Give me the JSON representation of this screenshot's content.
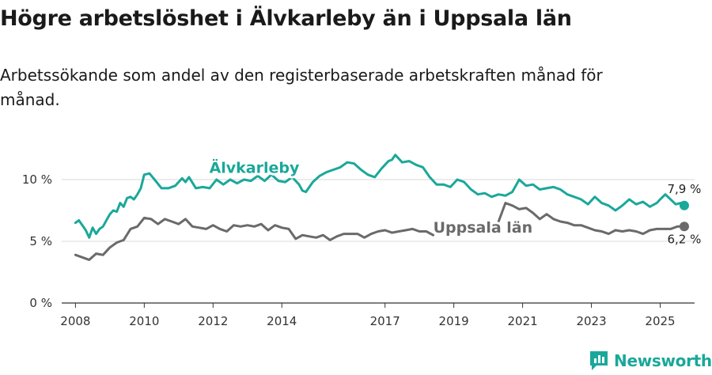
{
  "title": "Högre arbetslöshet i Älvkarleby än i Uppsala län",
  "subtitle": "Arbetssökande som andel av den registerbaserade arbetskraften månad för månad.",
  "brand": {
    "name": "Newsworthy",
    "color": "#1aa89a"
  },
  "chart_data": {
    "type": "line",
    "title": "Högre arbetslöshet i Älvkarleby än i Uppsala län",
    "xlabel": "",
    "ylabel": "",
    "xlim": [
      2007.6,
      2026.0
    ],
    "ylim": [
      0,
      12.5
    ],
    "grid": true,
    "y_ticks": [
      {
        "value": 0,
        "label": "0 %"
      },
      {
        "value": 5,
        "label": "5 %"
      },
      {
        "value": 10,
        "label": "10 %"
      }
    ],
    "x_ticks": [
      {
        "value": 2008,
        "label": "2008"
      },
      {
        "value": 2010,
        "label": "2010"
      },
      {
        "value": 2012,
        "label": "2012"
      },
      {
        "value": 2014,
        "label": "2014"
      },
      {
        "value": 2017,
        "label": "2017"
      },
      {
        "value": 2019,
        "label": "2019"
      },
      {
        "value": 2021,
        "label": "2021"
      },
      {
        "value": 2023,
        "label": "2023"
      },
      {
        "value": 2025,
        "label": "2025"
      }
    ],
    "series": [
      {
        "name": "Älvkarleby",
        "color": "#1aa89a",
        "end_label": "7,9 %",
        "x": [
          2008.0,
          2008.1,
          2008.2,
          2008.3,
          2008.4,
          2008.5,
          2008.6,
          2008.7,
          2008.8,
          2008.9,
          2009.0,
          2009.1,
          2009.2,
          2009.3,
          2009.4,
          2009.5,
          2009.6,
          2009.7,
          2009.8,
          2009.9,
          2010.0,
          2010.15,
          2010.3,
          2010.5,
          2010.7,
          2010.9,
          2011.0,
          2011.1,
          2011.2,
          2011.3,
          2011.5,
          2011.7,
          2011.9,
          2012.1,
          2012.3,
          2012.5,
          2012.7,
          2012.9,
          2013.1,
          2013.3,
          2013.5,
          2013.7,
          2013.9,
          2014.1,
          2014.3,
          2014.5,
          2014.6,
          2014.7,
          2014.8,
          2014.9,
          2015.1,
          2015.3,
          2015.5,
          2015.7,
          2015.9,
          2016.1,
          2016.3,
          2016.5,
          2016.7,
          2016.9,
          2017.0,
          2017.1,
          2017.2,
          2017.3,
          2017.5,
          2017.7,
          2017.9,
          2018.1,
          2018.3,
          2018.5,
          2018.7,
          2018.9,
          2019.1,
          2019.3,
          2019.5,
          2019.7,
          2019.9,
          2020.1,
          2020.3,
          2020.5,
          2020.7,
          2020.9,
          2021.1,
          2021.3,
          2021.5,
          2021.7,
          2021.9,
          2022.1,
          2022.3,
          2022.5,
          2022.7,
          2022.9,
          2023.1,
          2023.3,
          2023.5,
          2023.7,
          2023.9,
          2024.1,
          2024.3,
          2024.5,
          2024.7,
          2024.9,
          2025.0,
          2025.15,
          2025.3,
          2025.45,
          2025.6,
          2025.7
        ],
        "values": [
          6.5,
          6.7,
          6.3,
          5.9,
          5.3,
          6.1,
          5.6,
          6.0,
          6.2,
          6.7,
          7.2,
          7.5,
          7.4,
          8.1,
          7.8,
          8.5,
          8.6,
          8.4,
          8.8,
          9.3,
          10.4,
          10.5,
          10.0,
          9.3,
          9.3,
          9.5,
          9.8,
          10.1,
          9.8,
          10.2,
          9.3,
          9.4,
          9.3,
          10.0,
          9.6,
          10.0,
          9.7,
          10.0,
          9.9,
          10.3,
          9.9,
          10.4,
          9.9,
          9.8,
          10.2,
          9.6,
          9.1,
          9.0,
          9.4,
          9.8,
          10.3,
          10.6,
          10.8,
          11.0,
          11.4,
          11.3,
          10.8,
          10.4,
          10.2,
          10.9,
          11.2,
          11.5,
          11.6,
          12.0,
          11.4,
          11.5,
          11.2,
          11.0,
          10.2,
          9.6,
          9.6,
          9.4,
          10.0,
          9.8,
          9.2,
          8.8,
          8.9,
          8.6,
          8.8,
          8.7,
          9.0,
          10.0,
          9.5,
          9.6,
          9.2,
          9.3,
          9.4,
          9.2,
          8.8,
          8.6,
          8.4,
          8.0,
          8.6,
          8.1,
          7.9,
          7.5,
          7.9,
          8.4,
          8.0,
          8.2,
          7.8,
          8.1,
          8.4,
          8.8,
          8.4,
          8.0,
          8.1,
          7.9
        ]
      },
      {
        "name": "Uppsala län",
        "color": "#6a6a6a",
        "end_label": "6,2 %",
        "x": [
          2008.0,
          2008.2,
          2008.4,
          2008.6,
          2008.8,
          2009.0,
          2009.2,
          2009.4,
          2009.6,
          2009.8,
          2010.0,
          2010.2,
          2010.4,
          2010.6,
          2010.8,
          2011.0,
          2011.2,
          2011.4,
          2011.6,
          2011.8,
          2012.0,
          2012.2,
          2012.4,
          2012.6,
          2012.8,
          2013.0,
          2013.2,
          2013.4,
          2013.6,
          2013.8,
          2014.0,
          2014.2,
          2014.4,
          2014.6,
          2014.8,
          2015.0,
          2015.2,
          2015.4,
          2015.6,
          2015.8,
          2016.0,
          2016.2,
          2016.4,
          2016.6,
          2016.8,
          2017.0,
          2017.2,
          2017.4,
          2017.6,
          2017.8,
          2018.0,
          2018.2,
          2018.4,
          null,
          2020.3,
          2020.5,
          2020.7,
          2020.9,
          2021.1,
          2021.3,
          2021.5,
          2021.7,
          2021.9,
          2022.1,
          2022.3,
          2022.5,
          2022.7,
          2022.9,
          2023.1,
          2023.3,
          2023.5,
          2023.7,
          2023.9,
          2024.1,
          2024.3,
          2024.5,
          2024.7,
          2024.9,
          2025.1,
          2025.3,
          2025.5,
          2025.7
        ],
        "values": [
          3.9,
          3.7,
          3.5,
          4.0,
          3.9,
          4.5,
          4.9,
          5.1,
          6.0,
          6.2,
          6.9,
          6.8,
          6.4,
          6.8,
          6.6,
          6.4,
          6.8,
          6.2,
          6.1,
          6.0,
          6.3,
          6.0,
          5.8,
          6.3,
          6.2,
          6.3,
          6.2,
          6.4,
          5.9,
          6.3,
          6.1,
          6.0,
          5.2,
          5.5,
          5.4,
          5.3,
          5.5,
          5.1,
          5.4,
          5.6,
          5.6,
          5.6,
          5.3,
          5.6,
          5.8,
          5.9,
          5.7,
          5.8,
          5.9,
          6.0,
          5.8,
          5.8,
          5.5,
          null,
          6.6,
          8.1,
          7.9,
          7.6,
          7.7,
          7.3,
          6.8,
          7.2,
          6.8,
          6.6,
          6.5,
          6.3,
          6.3,
          6.1,
          5.9,
          5.8,
          5.6,
          5.9,
          5.8,
          5.9,
          5.8,
          5.6,
          5.9,
          6.0,
          6.0,
          6.0,
          6.2,
          6.2
        ]
      }
    ]
  }
}
